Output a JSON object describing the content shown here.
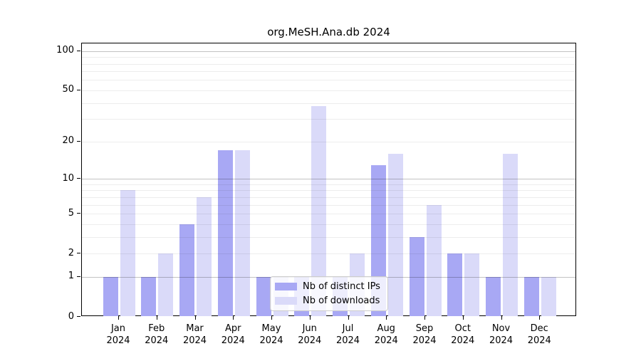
{
  "title": "org.MeSH.Ana.db 2024",
  "chart_data": {
    "type": "bar",
    "title": "org.MeSH.Ana.db 2024",
    "categories": [
      "Jan",
      "Feb",
      "Mar",
      "Apr",
      "May",
      "Jun",
      "Jul",
      "Aug",
      "Sep",
      "Oct",
      "Nov",
      "Dec"
    ],
    "year": "2024",
    "series": [
      {
        "name": "Nb of distinct IPs",
        "color": "#a8a8f4",
        "values": [
          1,
          1,
          4,
          17,
          1,
          1,
          1,
          13,
          3,
          2,
          1,
          1
        ]
      },
      {
        "name": "Nb of downloads",
        "color": "#dadaf9",
        "values": [
          8,
          2,
          7,
          17,
          1,
          38,
          2,
          16,
          6,
          2,
          16,
          1
        ]
      }
    ],
    "y_axis": {
      "scale": "log10(1+x)",
      "tick_labels": [
        0,
        1,
        2,
        5,
        10,
        20,
        50,
        100
      ],
      "major_gridlines": [
        1,
        10,
        100
      ],
      "minor_gridlines": [
        2,
        3,
        4,
        5,
        6,
        7,
        8,
        9,
        20,
        30,
        40,
        50,
        60,
        70,
        80,
        90
      ],
      "ylim": [
        0,
        115
      ]
    },
    "xlabel": "",
    "ylabel": "",
    "grid": "on",
    "legend_position": "bottom-center"
  },
  "colors": {
    "background": "#ffffff",
    "axis": "#000000",
    "text": "#000000",
    "grid_major": "rgba(0,0,0,0.24)",
    "grid_minor": "rgba(0,0,0,0.07)"
  }
}
